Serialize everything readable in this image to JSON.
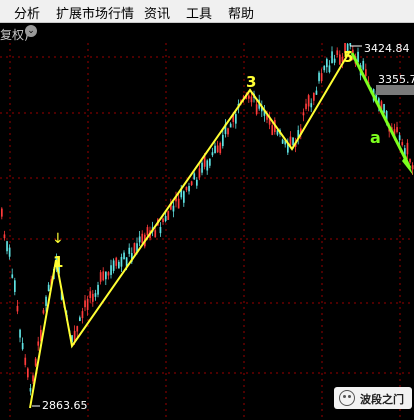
{
  "menu": {
    "items": [
      "分析",
      "扩展市场行情",
      "资讯",
      "工具",
      "帮助"
    ]
  },
  "subbar": {
    "label": "复权)",
    "toggle_glyph": "⌄"
  },
  "prices": {
    "high_label": "3424.84",
    "low_label": "2863.65",
    "right_label": "3355.7"
  },
  "wave_labels": {
    "w1": "1",
    "w3": "3",
    "w5": "5",
    "wa": "a",
    "arrow": "↓"
  },
  "watermark": {
    "text": "波段之门",
    "icon": "wechat-icon"
  },
  "colors": {
    "wave_line": "#ffff33",
    "correction_line": "#7dff1e",
    "candle_up": "#ff3b3b",
    "candle_down": "#5fe3e3",
    "grid": "#9a0000"
  }
}
